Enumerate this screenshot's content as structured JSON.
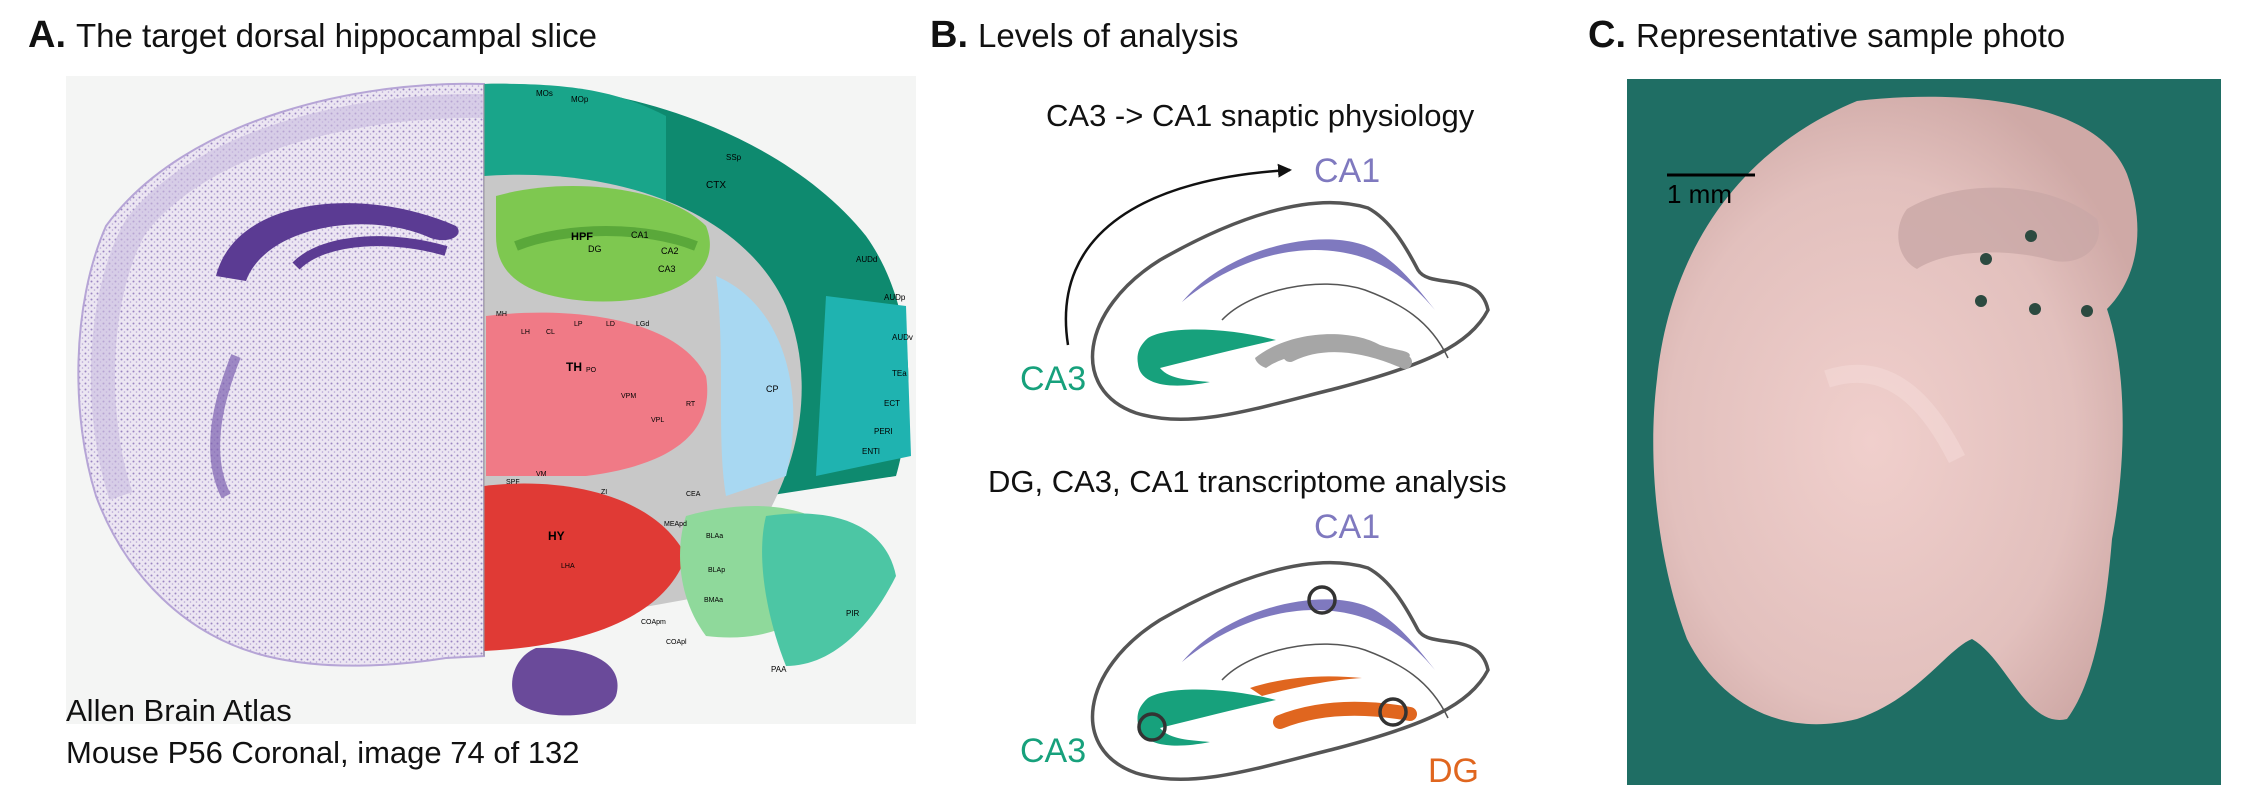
{
  "panel_a": {
    "letter": "A.",
    "title": "The target dorsal hippocampal slice",
    "caption_line1": "Allen Brain Atlas",
    "caption_line2": "Mouse P56 Coronal, image 74 of 132",
    "atlas_labels": [
      "HPF",
      "DG",
      "CA1",
      "CA2",
      "CA3",
      "TH",
      "HY",
      "CTX",
      "CP",
      "SSp",
      "MOs",
      "MOp",
      "AUDd",
      "AUDp",
      "AUDv",
      "TEa",
      "ECT",
      "PERI",
      "ENTl",
      "PIR",
      "PAA",
      "LH",
      "CL",
      "LP",
      "LD",
      "LGd",
      "VPM",
      "VPL",
      "RT",
      "ZI",
      "LHA",
      "BLAa",
      "BLAp",
      "BMAa",
      "CEA",
      "MEApd",
      "COApm",
      "COApl",
      "VM",
      "PO",
      "SPF",
      "MH"
    ],
    "colors": {
      "nissl": "#6a4a9a",
      "hpf": "#7ec850",
      "th": "#f07a86",
      "hy": "#e03a35",
      "ctx": "#0e8a6f",
      "cp": "#a8d8f2",
      "amygdala": "#8fd99b",
      "fiber": "#c8c8c8"
    }
  },
  "panel_b": {
    "letter": "B.",
    "title": "Levels of analysis",
    "diagram1": {
      "heading": "CA3 -> CA1 snaptic physiology",
      "label_ca1": "CA1",
      "label_ca3": "CA3"
    },
    "diagram2": {
      "heading": "DG, CA3, CA1 transcriptome analysis",
      "label_ca1": "CA1",
      "label_ca3": "CA3",
      "label_dg": "DG"
    },
    "colors": {
      "ca1": "#7f79bf",
      "ca3": "#17a17c",
      "dg": "#e0661f",
      "gray": "#a6a6a6",
      "outline": "#555555"
    }
  },
  "panel_c": {
    "letter": "C.",
    "title": "Representative sample photo",
    "scale_label": "1 mm",
    "colors": {
      "background": "#1f6e64",
      "tissue": "#e8c7c4"
    }
  }
}
